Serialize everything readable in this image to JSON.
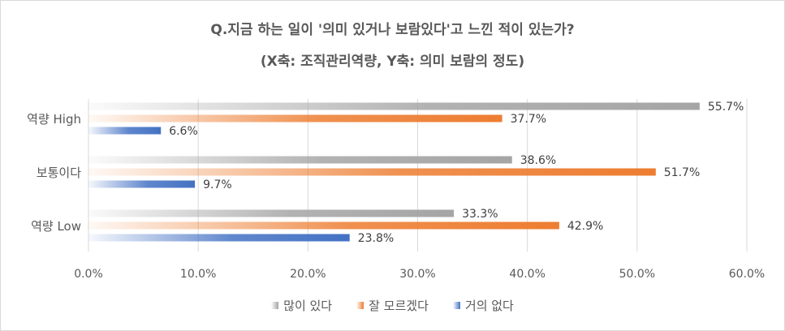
{
  "chart_data": {
    "type": "bar",
    "orientation": "horizontal",
    "title": "Q.지금 하는 일이 '의미 있거나 보람있다'고 느낀 적이 있는가?",
    "subtitle": "(X축: 조직관리역량, Y축: 의미 보람의 정도)",
    "categories": [
      "역량 High",
      "보통이다",
      "역량 Low"
    ],
    "series": [
      {
        "name": "많이 있다",
        "values": [
          55.7,
          38.6,
          33.3
        ],
        "labels": [
          "55.7%",
          "38.6%",
          "33.3%"
        ],
        "color": "#a5a5a5"
      },
      {
        "name": "잘 모르겠다",
        "values": [
          37.7,
          51.7,
          42.9
        ],
        "labels": [
          "37.7%",
          "51.7%",
          "42.9%"
        ],
        "color": "#ed7d31"
      },
      {
        "name": "거의 없다",
        "values": [
          6.6,
          9.7,
          23.8
        ],
        "labels": [
          "6.6%",
          "9.7%",
          "23.8%"
        ],
        "color": "#4472c4"
      }
    ],
    "xlim": [
      0,
      60
    ],
    "x_ticks": [
      "0.0%",
      "10.0%",
      "20.0%",
      "30.0%",
      "40.0%",
      "50.0%",
      "60.0%"
    ],
    "grid": true,
    "legend_position": "bottom"
  }
}
